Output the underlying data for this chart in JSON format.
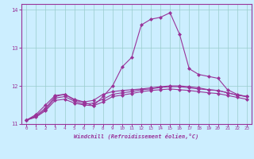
{
  "bg_color": "#cceeff",
  "line_color": "#993399",
  "grid_color": "#99cccc",
  "xlabel": "Windchill (Refroidissement éolien,°C)",
  "xlabel_color": "#993399",
  "xtick_color": "#993399",
  "ytick_color": "#993399",
  "spine_color": "#993399",
  "ylim": [
    11.0,
    14.15
  ],
  "xlim": [
    -0.5,
    23.5
  ],
  "yticks": [
    11,
    12,
    13,
    14
  ],
  "xticks": [
    0,
    1,
    2,
    3,
    4,
    5,
    6,
    7,
    8,
    9,
    10,
    11,
    12,
    13,
    14,
    15,
    16,
    17,
    18,
    19,
    20,
    21,
    22,
    23
  ],
  "series": [
    [
      11.1,
      11.25,
      11.5,
      11.75,
      11.78,
      11.63,
      11.57,
      11.48,
      11.72,
      12.0,
      12.5,
      12.75,
      13.6,
      13.75,
      13.8,
      13.92,
      13.35,
      12.45,
      12.3,
      12.25,
      12.2,
      11.9,
      11.78,
      11.72
    ],
    [
      11.1,
      11.22,
      11.42,
      11.72,
      11.78,
      11.65,
      11.58,
      11.62,
      11.78,
      11.85,
      11.88,
      11.9,
      11.92,
      11.95,
      11.98,
      12.0,
      12.0,
      11.98,
      11.95,
      11.9,
      11.88,
      11.82,
      11.76,
      11.72
    ],
    [
      11.1,
      11.2,
      11.38,
      11.68,
      11.72,
      11.6,
      11.52,
      11.55,
      11.65,
      11.78,
      11.82,
      11.85,
      11.9,
      11.92,
      11.96,
      11.98,
      11.98,
      11.95,
      11.92,
      11.9,
      11.88,
      11.82,
      11.76,
      11.72
    ],
    [
      11.1,
      11.18,
      11.35,
      11.62,
      11.65,
      11.55,
      11.5,
      11.48,
      11.58,
      11.72,
      11.76,
      11.8,
      11.85,
      11.88,
      11.9,
      11.92,
      11.9,
      11.88,
      11.85,
      11.82,
      11.8,
      11.75,
      11.7,
      11.65
    ]
  ]
}
